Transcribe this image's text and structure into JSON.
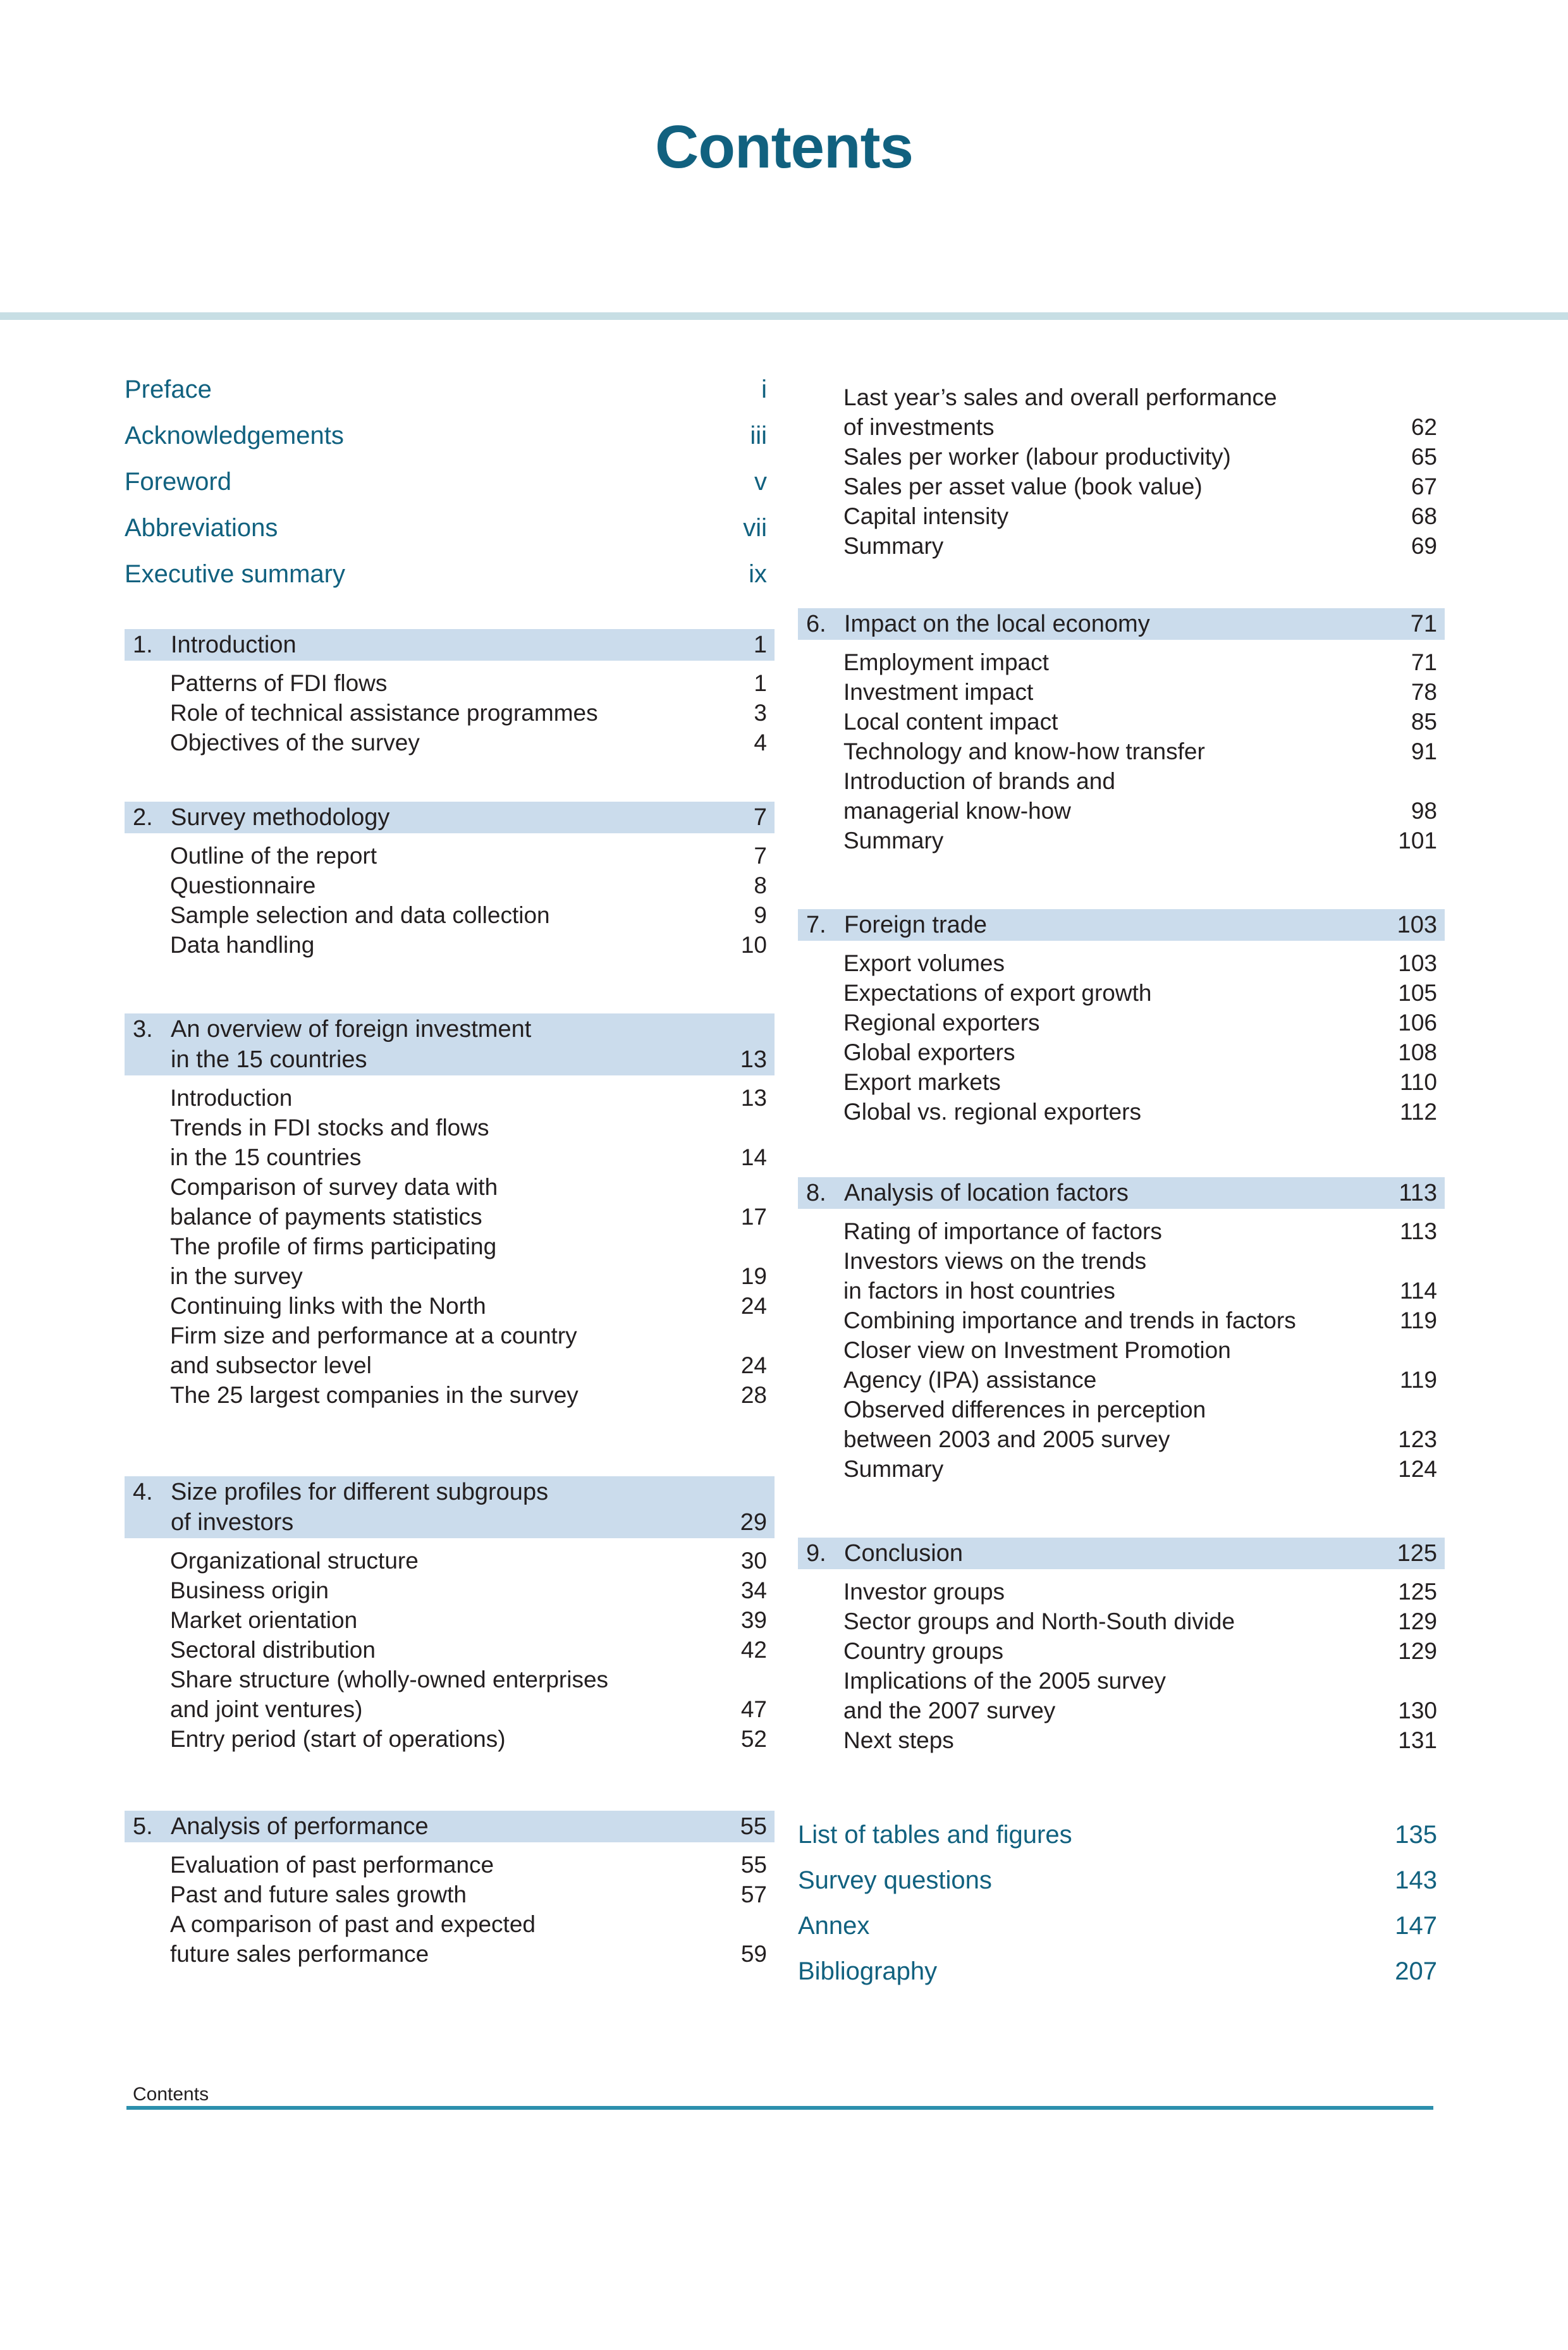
{
  "page": {
    "title": "Contents",
    "footer_label": "Contents"
  },
  "colors": {
    "accent_teal": "#11617f",
    "section_bar_bg": "#cbdcec",
    "top_band": "#c7dee4",
    "footer_rule": "#2c90ad",
    "body_text": "#231f20"
  },
  "front_matter": [
    {
      "label": "Preface",
      "page": "i"
    },
    {
      "label": "Acknowledgements",
      "page": "iii"
    },
    {
      "label": "Foreword",
      "page": "v"
    },
    {
      "label": "Abbreviations",
      "page": "vii"
    },
    {
      "label": "Executive summary",
      "page": "ix"
    }
  ],
  "left_sections": [
    {
      "number": "1.",
      "title_lines": [
        "Introduction"
      ],
      "page": "1",
      "items": [
        {
          "lines": [
            "Patterns of FDI flows"
          ],
          "page": "1"
        },
        {
          "lines": [
            "Role of technical assistance programmes"
          ],
          "page": "3"
        },
        {
          "lines": [
            "Objectives of the survey"
          ],
          "page": "4"
        }
      ]
    },
    {
      "number": "2.",
      "title_lines": [
        "Survey methodology"
      ],
      "page": "7",
      "items": [
        {
          "lines": [
            "Outline of the report"
          ],
          "page": "7"
        },
        {
          "lines": [
            "Questionnaire"
          ],
          "page": "8"
        },
        {
          "lines": [
            "Sample selection and data collection"
          ],
          "page": "9"
        },
        {
          "lines": [
            "Data handling"
          ],
          "page": "10"
        }
      ]
    },
    {
      "number": "3.",
      "title_lines": [
        "An overview of foreign investment",
        "in the 15 countries"
      ],
      "page": "13",
      "items": [
        {
          "lines": [
            "Introduction"
          ],
          "page": "13"
        },
        {
          "lines": [
            "Trends in FDI stocks and flows",
            "in the 15 countries"
          ],
          "page": "14"
        },
        {
          "lines": [
            "Comparison of survey data with",
            "balance of payments statistics"
          ],
          "page": "17"
        },
        {
          "lines": [
            "The profile of firms participating",
            "in the survey"
          ],
          "page": "19"
        },
        {
          "lines": [
            "Continuing links with the North"
          ],
          "page": "24"
        },
        {
          "lines": [
            "Firm size and performance at a country",
            "and subsector level"
          ],
          "page": "24"
        },
        {
          "lines": [
            "The 25 largest companies in the survey"
          ],
          "page": "28"
        }
      ]
    },
    {
      "number": "4.",
      "title_lines": [
        "Size profiles for different subgroups",
        "of investors"
      ],
      "page": "29",
      "items": [
        {
          "lines": [
            "Organizational structure"
          ],
          "page": "30"
        },
        {
          "lines": [
            "Business origin"
          ],
          "page": "34"
        },
        {
          "lines": [
            "Market orientation"
          ],
          "page": "39"
        },
        {
          "lines": [
            "Sectoral distribution"
          ],
          "page": "42"
        },
        {
          "lines": [
            "Share structure (wholly-owned enterprises",
            "and joint ventures)"
          ],
          "page": "47"
        },
        {
          "lines": [
            "Entry period (start of operations)"
          ],
          "page": "52"
        }
      ]
    },
    {
      "number": "5.",
      "title_lines": [
        "Analysis of performance"
      ],
      "page": "55",
      "items": [
        {
          "lines": [
            "Evaluation of past performance"
          ],
          "page": "55"
        },
        {
          "lines": [
            "Past and future sales growth"
          ],
          "page": "57"
        },
        {
          "lines": [
            "A comparison of past and expected",
            "future sales performance"
          ],
          "page": "59"
        }
      ]
    }
  ],
  "right_continuation_items": [
    {
      "lines": [
        "Last year’s sales and overall performance",
        "of investments"
      ],
      "page": "62"
    },
    {
      "lines": [
        "Sales per worker (labour productivity)"
      ],
      "page": "65"
    },
    {
      "lines": [
        "Sales per asset value (book value)"
      ],
      "page": "67"
    },
    {
      "lines": [
        "Capital intensity"
      ],
      "page": "68"
    },
    {
      "lines": [
        "Summary"
      ],
      "page": "69"
    }
  ],
  "right_sections": [
    {
      "number": "6.",
      "title_lines": [
        "Impact on the local economy"
      ],
      "page": "71",
      "items": [
        {
          "lines": [
            "Employment impact"
          ],
          "page": "71"
        },
        {
          "lines": [
            "Investment impact"
          ],
          "page": "78"
        },
        {
          "lines": [
            "Local content impact"
          ],
          "page": "85"
        },
        {
          "lines": [
            "Technology and know-how transfer"
          ],
          "page": "91"
        },
        {
          "lines": [
            "Introduction of brands and",
            "managerial know-how"
          ],
          "page": "98"
        },
        {
          "lines": [
            "Summary"
          ],
          "page": "101"
        }
      ]
    },
    {
      "number": "7.",
      "title_lines": [
        "Foreign trade"
      ],
      "page": "103",
      "items": [
        {
          "lines": [
            "Export volumes"
          ],
          "page": "103"
        },
        {
          "lines": [
            "Expectations of export growth"
          ],
          "page": "105"
        },
        {
          "lines": [
            "Regional exporters"
          ],
          "page": "106"
        },
        {
          "lines": [
            "Global exporters"
          ],
          "page": "108"
        },
        {
          "lines": [
            "Export markets"
          ],
          "page": "110"
        },
        {
          "lines": [
            "Global vs. regional exporters"
          ],
          "page": "112"
        }
      ]
    },
    {
      "number": "8.",
      "title_lines": [
        "Analysis of location factors"
      ],
      "page": "113",
      "items": [
        {
          "lines": [
            "Rating of importance of factors"
          ],
          "page": "113"
        },
        {
          "lines": [
            "Investors views on the trends",
            "in factors in host countries"
          ],
          "page": "114"
        },
        {
          "lines": [
            "Combining importance and trends in factors"
          ],
          "page": "119"
        },
        {
          "lines": [
            "Closer view on Investment Promotion",
            "Agency (IPA) assistance"
          ],
          "page": "119"
        },
        {
          "lines": [
            "Observed differences in perception",
            "between 2003 and 2005 survey"
          ],
          "page": "123"
        },
        {
          "lines": [
            "Summary"
          ],
          "page": "124"
        }
      ]
    },
    {
      "number": "9.",
      "title_lines": [
        "Conclusion"
      ],
      "page": "125",
      "items": [
        {
          "lines": [
            "Investor groups"
          ],
          "page": "125"
        },
        {
          "lines": [
            "Sector groups and North-South divide"
          ],
          "page": "129"
        },
        {
          "lines": [
            "Country groups"
          ],
          "page": "129"
        },
        {
          "lines": [
            "Implications of the 2005 survey",
            "and the 2007 survey"
          ],
          "page": "130"
        },
        {
          "lines": [
            "Next steps"
          ],
          "page": "131"
        }
      ]
    }
  ],
  "back_matter": [
    {
      "label": "List of tables and figures",
      "page": "135"
    },
    {
      "label": "Survey questions",
      "page": "143"
    },
    {
      "label": "Annex",
      "page": "147"
    },
    {
      "label": "Bibliography",
      "page": "207"
    }
  ]
}
